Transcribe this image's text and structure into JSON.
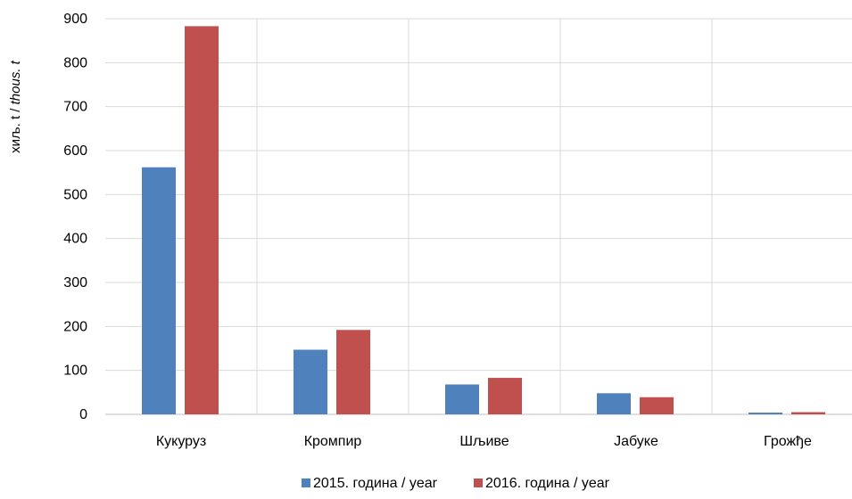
{
  "chart_data": {
    "type": "bar",
    "categories": [
      "Кукуруз",
      "Кромпир",
      "Шљиве",
      "Јабуке",
      "Грожђе"
    ],
    "series": [
      {
        "name": "2015. година / year",
        "values": [
          562,
          147,
          68,
          48,
          4
        ],
        "color": "#4f81bd"
      },
      {
        "name": "2016. година / year",
        "values": [
          883,
          192,
          83,
          39,
          5
        ],
        "color": "#c0504d"
      }
    ],
    "ylabel": "хиљ. t / thous. t",
    "ylabel_parts": {
      "cyrillic": "хиљ. t",
      "sep": " / ",
      "latin": "thous. t"
    },
    "ylim": [
      0,
      900
    ],
    "yticks": [
      0,
      100,
      200,
      300,
      400,
      500,
      600,
      700,
      800,
      900
    ],
    "grid": true,
    "legend_position": "bottom"
  }
}
